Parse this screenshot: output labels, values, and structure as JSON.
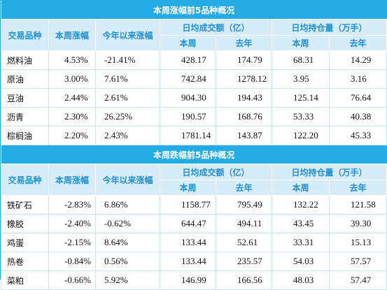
{
  "top": {
    "title": "本周涨幅前5品种概况",
    "headers": {
      "variety": "交易品种",
      "weekly_change": "本周涨幅",
      "ytd_change": "今年以来涨幅",
      "avg_volume": "日均成交额（亿）",
      "avg_oi": "日均持仓量（万手）",
      "this_week": "本周",
      "last_year": "去年"
    },
    "rows": [
      {
        "name": "燃料油",
        "week": "4.53%",
        "ytd": "-21.41%",
        "vol_week": "428.17",
        "vol_year": "174.79",
        "oi_week": "68.31",
        "oi_year": "14.29"
      },
      {
        "name": "原油",
        "week": "3.00%",
        "ytd": "7.61%",
        "vol_week": "742.84",
        "vol_year": "1278.12",
        "oi_week": "3.95",
        "oi_year": "3.16"
      },
      {
        "name": "豆油",
        "week": "2.44%",
        "ytd": "2.61%",
        "vol_week": "904.30",
        "vol_year": "194.43",
        "oi_week": "125.14",
        "oi_year": "76.64"
      },
      {
        "name": "沥青",
        "week": "2.30%",
        "ytd": "26.25%",
        "vol_week": "190.57",
        "vol_year": "168.76",
        "oi_week": "53.33",
        "oi_year": "40.38"
      },
      {
        "name": "棕榈油",
        "week": "2.20%",
        "ytd": "2.43%",
        "vol_week": "1781.14",
        "vol_year": "143.87",
        "oi_week": "122.20",
        "oi_year": "45.33"
      }
    ]
  },
  "bottom": {
    "title": "本周跌幅前5品种概况",
    "headers": {
      "variety": "交易品种",
      "weekly_change": "本周涨幅",
      "ytd_change": "今年以来涨幅",
      "avg_volume": "日均成交额（亿）",
      "avg_oi": "日均持仓量（万手）",
      "this_week": "本周",
      "last_year": "去年"
    },
    "rows": [
      {
        "name": "铁矿石",
        "week": "-2.83%",
        "ytd": "6.86%",
        "vol_week": "1158.77",
        "vol_year": "795.49",
        "oi_week": "132.22",
        "oi_year": "121.58"
      },
      {
        "name": "橡胶",
        "week": "-2.40%",
        "ytd": "-0.62%",
        "vol_week": "644.47",
        "vol_year": "494.11",
        "oi_week": "43.45",
        "oi_year": "39.30"
      },
      {
        "name": "鸡蛋",
        "week": "-2.15%",
        "ytd": "8.64%",
        "vol_week": "133.44",
        "vol_year": "52.61",
        "oi_week": "33.31",
        "oi_year": "15.13"
      },
      {
        "name": "热卷",
        "week": "-0.84%",
        "ytd": "0.56%",
        "vol_week": "133.44",
        "vol_year": "235.57",
        "oi_week": "54.03",
        "oi_year": "57.57"
      },
      {
        "name": "菜粕",
        "week": "-0.66%",
        "ytd": "5.92%",
        "vol_week": "146.99",
        "vol_year": "166.56",
        "oi_week": "48.03",
        "oi_year": "57.47"
      }
    ]
  }
}
